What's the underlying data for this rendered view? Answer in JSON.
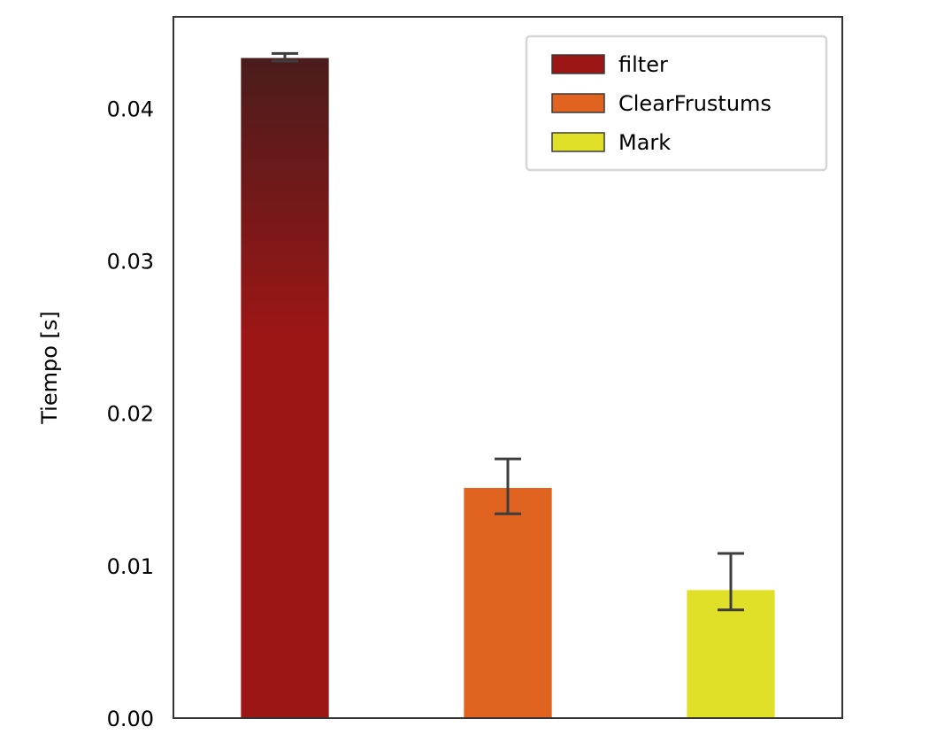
{
  "chart_data": {
    "type": "bar",
    "title": "",
    "xlabel": "",
    "ylabel": "Tiempo [s]",
    "ylim": [
      0,
      0.046
    ],
    "yticks": [
      "0.00",
      "0.01",
      "0.02",
      "0.03",
      "0.04"
    ],
    "grid": false,
    "legend_position": "top-right",
    "categories": [
      "filter",
      "ClearFrustums",
      "Mark"
    ],
    "values": [
      0.0433,
      0.0151,
      0.0084
    ],
    "error_low": [
      0.0431,
      0.0134,
      0.0071
    ],
    "error_high": [
      0.0436,
      0.017,
      0.0108
    ],
    "colors": [
      "#9c1616",
      "#e06320",
      "#e0e028"
    ],
    "gradient_top_color": "#4a1c1c",
    "error_bar_color": "#3d3d3d"
  }
}
